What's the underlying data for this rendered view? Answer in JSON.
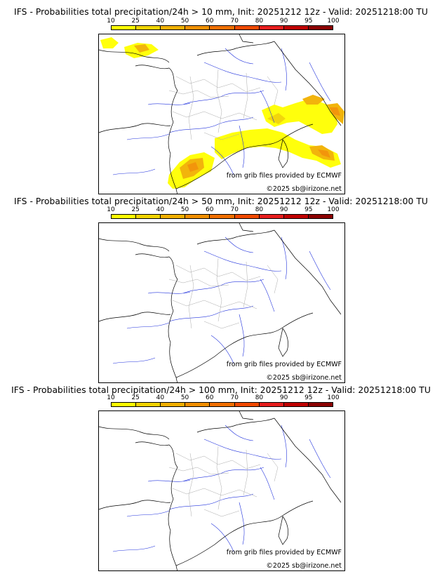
{
  "model": "IFS",
  "scale": {
    "labels": [
      "10",
      "25",
      "40",
      "50",
      "60",
      "70",
      "80",
      "90",
      "95",
      "100"
    ],
    "colors": [
      "#ffff00",
      "#f2d400",
      "#f2b000",
      "#f29000",
      "#f27000",
      "#f24a00",
      "#e81e1e",
      "#c00000",
      "#8c0000",
      "#5a0000"
    ]
  },
  "credits": {
    "source": "from grib files provided by ECMWF",
    "copyright": "©2025 sb@irizone.net"
  },
  "panels": [
    {
      "title": "IFS - Probabilities total precipitation/24h > 10 mm, Init: 20251212 12z - Valid: 20251218:00 TU",
      "threshold_mm": 10
    },
    {
      "title": "IFS - Probabilities total precipitation/24h > 50 mm, Init: 20251212 12z - Valid: 20251218:00 TU",
      "threshold_mm": 50
    },
    {
      "title": "IFS - Probabilities total precipitation/24h > 100 mm, Init: 20251212 12z - Valid: 20251218:00 TU",
      "threshold_mm": 100
    }
  ]
}
